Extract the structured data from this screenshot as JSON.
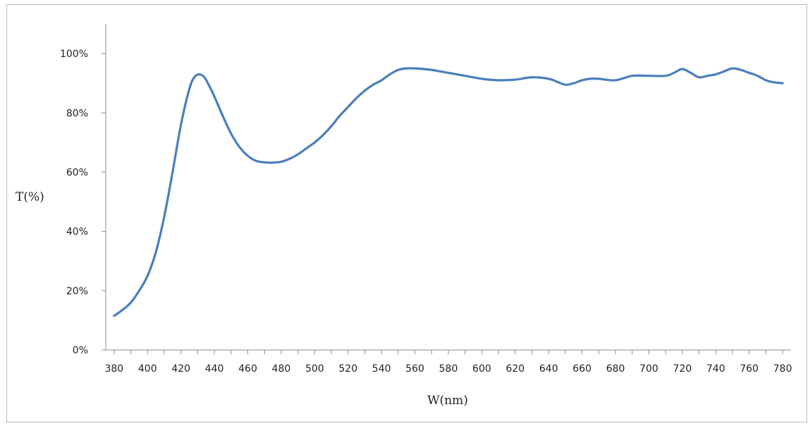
{
  "chart_data": {
    "type": "line",
    "title": "",
    "xlabel": "W(nm)",
    "ylabel": "T(%)",
    "xlim": [
      375,
      785
    ],
    "ylim": [
      0,
      110
    ],
    "x_ticks": [
      380,
      400,
      420,
      440,
      460,
      480,
      500,
      520,
      540,
      560,
      580,
      600,
      620,
      640,
      660,
      680,
      700,
      720,
      740,
      760,
      780
    ],
    "x_tick_labels": [
      "380",
      "400",
      "420",
      "440",
      "460",
      "480",
      "500",
      "520",
      "540",
      "560",
      "580",
      "600",
      "620",
      "640",
      "660",
      "680",
      "700",
      "720",
      "740",
      "760",
      "780"
    ],
    "y_ticks": [
      0,
      20,
      40,
      60,
      80,
      100
    ],
    "y_tick_labels": [
      "0%",
      "20%",
      "40%",
      "60%",
      "80%",
      "100%"
    ],
    "grid": false,
    "legend": "none",
    "series": [
      {
        "color": "#4a7ebb",
        "x": [
          380,
          385,
          390,
          395,
          400,
          405,
          410,
          415,
          420,
          425,
          428,
          431,
          434,
          437,
          440,
          445,
          450,
          455,
          460,
          465,
          470,
          475,
          480,
          485,
          490,
          495,
          500,
          505,
          510,
          515,
          520,
          525,
          530,
          535,
          540,
          545,
          550,
          555,
          560,
          565,
          570,
          575,
          580,
          590,
          600,
          610,
          620,
          630,
          640,
          645,
          650,
          655,
          660,
          665,
          670,
          680,
          690,
          700,
          710,
          715,
          720,
          725,
          730,
          735,
          740,
          745,
          750,
          755,
          760,
          765,
          770,
          775,
          780
        ],
        "y": [
          11.5,
          13.5,
          16,
          20,
          25,
          33,
          45,
          60,
          76,
          88,
          92,
          93,
          92,
          89,
          85.5,
          79,
          73,
          68.5,
          65.5,
          63.8,
          63.3,
          63.2,
          63.5,
          64.5,
          66,
          68,
          70,
          72.5,
          75.5,
          79,
          82,
          85,
          87.5,
          89.5,
          91,
          93,
          94.5,
          95,
          95,
          94.8,
          94.5,
          94,
          93.5,
          92.5,
          91.5,
          91,
          91.2,
          92,
          91.5,
          90.5,
          89.5,
          90,
          91,
          91.5,
          91.5,
          91,
          92.5,
          92.5,
          92.5,
          93.5,
          94.8,
          93.5,
          92,
          92.5,
          93,
          94,
          95,
          94.5,
          93.5,
          92.5,
          91,
          90.3,
          90
        ]
      }
    ]
  }
}
